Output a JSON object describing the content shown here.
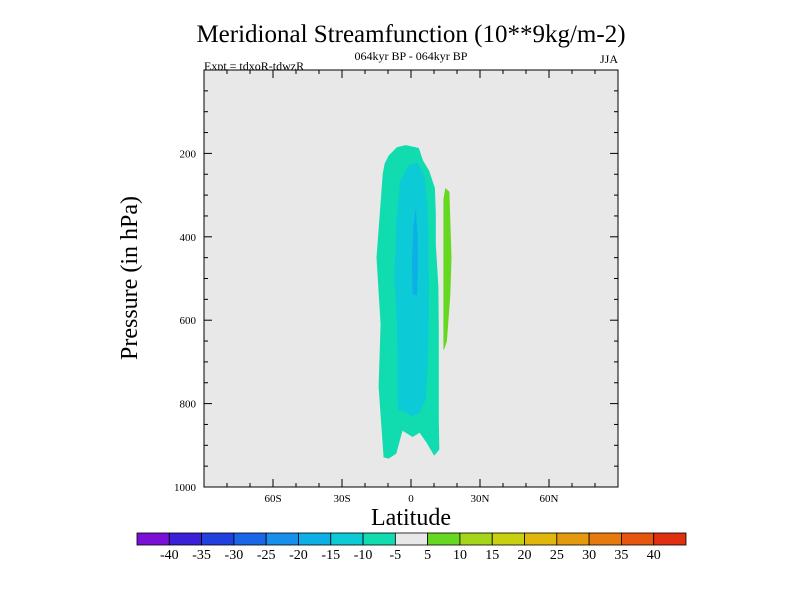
{
  "chart_data": {
    "type": "heatmap",
    "title": "Meridional Streamfunction (10**9kg/m-2)",
    "subtitle": "064kyr BP - 064kyr BP",
    "left_label": "Expt = tdxoR-tdwzR",
    "right_label": "JJA",
    "xlabel": "Latitude",
    "ylabel": "Pressure (in hPa)",
    "xlim": [
      -90,
      90
    ],
    "ylim": [
      1000,
      0
    ],
    "x_ticks": [
      {
        "value": -60,
        "label": "60S"
      },
      {
        "value": -30,
        "label": "30S"
      },
      {
        "value": 0,
        "label": "0"
      },
      {
        "value": 30,
        "label": "30N"
      },
      {
        "value": 60,
        "label": "60N"
      }
    ],
    "y_ticks": [
      {
        "value": 200,
        "label": "200"
      },
      {
        "value": 400,
        "label": "400"
      },
      {
        "value": 600,
        "label": "600"
      },
      {
        "value": 800,
        "label": "800"
      },
      {
        "value": 1000,
        "label": "1000"
      }
    ],
    "background_color": "#e8e8e8",
    "levels": [
      -40,
      -35,
      -30,
      -25,
      -20,
      -15,
      -10,
      -5,
      5,
      10,
      15,
      20,
      25,
      30,
      35,
      40
    ],
    "colorbar_colors": [
      "#7a10d8",
      "#3a20d8",
      "#2040e0",
      "#1a66e8",
      "#1690ec",
      "#0cb0e6",
      "#0ccad6",
      "#10dcb0",
      "#e8e8e8",
      "#66d820",
      "#a6d61a",
      "#c8d010",
      "#e0b80c",
      "#e49a0c",
      "#e67a0c",
      "#e6560c",
      "#e03010"
    ],
    "contours": [
      {
        "level": "-10 to -5",
        "color": "#10dcb0",
        "points": [
          [
            -11.9,
            929
          ],
          [
            -14.1,
            760
          ],
          [
            -13.2,
            610
          ],
          [
            -15,
            450
          ],
          [
            -12.3,
            250
          ],
          [
            -11.5,
            225
          ],
          [
            -9.7,
            205
          ],
          [
            -6.1,
            185
          ],
          [
            -2.2,
            180
          ],
          [
            3.4,
            187
          ],
          [
            5.2,
            217
          ],
          [
            7.9,
            242
          ],
          [
            10.4,
            283
          ],
          [
            10.8,
            343
          ],
          [
            10.8,
            417
          ],
          [
            11.9,
            520
          ],
          [
            12.1,
            625
          ],
          [
            12.1,
            735
          ],
          [
            12.1,
            835
          ],
          [
            12.3,
            910
          ],
          [
            10.1,
            925
          ],
          [
            6.9,
            895
          ],
          [
            3.8,
            870
          ],
          [
            0.7,
            880
          ],
          [
            -3.7,
            865
          ],
          [
            -6.4,
            920
          ],
          [
            -9.7,
            932
          ]
        ]
      },
      {
        "level": "-15 to -10",
        "color": "#0ccad6",
        "points": [
          [
            -5.7,
            815
          ],
          [
            -5.9,
            700
          ],
          [
            -6.1,
            600
          ],
          [
            -7.2,
            500
          ],
          [
            -6.3,
            360
          ],
          [
            -4.8,
            268
          ],
          [
            -0.9,
            228
          ],
          [
            2.8,
            222
          ],
          [
            5.8,
            253
          ],
          [
            7.1,
            318
          ],
          [
            7.5,
            400
          ],
          [
            7.8,
            520
          ],
          [
            7.7,
            620
          ],
          [
            7.3,
            700
          ],
          [
            6.4,
            790
          ],
          [
            3.8,
            822
          ],
          [
            0.3,
            830
          ],
          [
            -3.3,
            818
          ]
        ]
      },
      {
        "level": "-20 to -15",
        "color": "#0cb0e6",
        "points": [
          [
            0.7,
            538
          ],
          [
            0.4,
            460
          ],
          [
            1.0,
            380
          ],
          [
            2.1,
            330
          ],
          [
            2.9,
            400
          ],
          [
            3.0,
            470
          ],
          [
            2.6,
            540
          ]
        ]
      },
      {
        "level": "5 to 10",
        "color": "#66d820",
        "points": [
          [
            14.1,
            672
          ],
          [
            14.1,
            590
          ],
          [
            14.1,
            480
          ],
          [
            14.1,
            380
          ],
          [
            14.1,
            310
          ],
          [
            14.9,
            283
          ],
          [
            16.7,
            292
          ],
          [
            17.1,
            360
          ],
          [
            17.6,
            450
          ],
          [
            17.1,
            540
          ],
          [
            15.6,
            650
          ],
          [
            14.7,
            666
          ]
        ]
      }
    ]
  }
}
